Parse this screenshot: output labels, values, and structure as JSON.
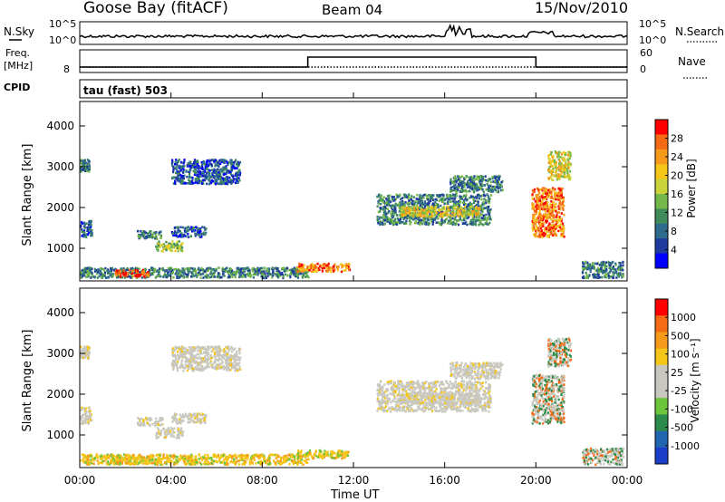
{
  "header": {
    "station": "Goose Bay (fitACF)",
    "beam": "Beam 04",
    "date": "15/Nov/2010"
  },
  "noise_panel": {
    "left_label": "N.Sky",
    "right_label": "N.Search",
    "left_ticks": [
      "10^5",
      "10^0"
    ],
    "right_ticks": [
      "10^5",
      "10^0"
    ]
  },
  "freq_panel": {
    "left_label_1": "Freq.",
    "left_label_2": "[MHz]",
    "right_label": "Nave",
    "left_ticks": [
      "8"
    ],
    "right_ticks": [
      "60",
      "0"
    ]
  },
  "cpid_panel": {
    "label": "CPID",
    "value": "tau (fast) 503"
  },
  "x_axis": {
    "label": "Time UT",
    "ticks": [
      "00:00",
      "04:00",
      "08:00",
      "12:00",
      "16:00",
      "20:00",
      "00:00"
    ]
  },
  "power_panel": {
    "ylabel": "Slant Range [km]",
    "yticks": [
      "4000",
      "3000",
      "2000",
      "1000"
    ],
    "colorbar_label": "Power [dB]",
    "colorbar_ticks": [
      "28",
      "24",
      "20",
      "16",
      "12",
      "8",
      "4"
    ],
    "colors": [
      "#0000ff",
      "#1f3a9e",
      "#2e6b8c",
      "#3f8c5a",
      "#74b84a",
      "#c8d43a",
      "#f5c518",
      "#f59a1a",
      "#f56a14",
      "#ff0000"
    ]
  },
  "velocity_panel": {
    "ylabel": "Slant Range [km]",
    "yticks": [
      "4000",
      "3000",
      "2000",
      "1000"
    ],
    "colorbar_label": "Velocity [m s⁻¹]",
    "colorbar_ticks": [
      "1000",
      "500",
      "100",
      "25",
      "-25",
      "-100",
      "-500",
      "-1000"
    ],
    "colors": [
      "#1a3ec8",
      "#2166b0",
      "#2c8a4a",
      "#6cc53a",
      "#c8c8c0",
      "#c8c8c0",
      "#f5c518",
      "#f59a1a",
      "#f56a14",
      "#ff0000"
    ]
  },
  "chart_data": {
    "type": "heatmap",
    "xlabel": "Time UT",
    "ylabel": "Slant Range [km]",
    "xlim_hours": [
      0,
      24
    ],
    "ylim_km": [
      200,
      4600
    ],
    "freq_mhz_step": {
      "low_hours": [
        0,
        10
      ],
      "high_hours": [
        10,
        20
      ],
      "low_after_hours": [
        20,
        24
      ]
    },
    "power_blobs": [
      {
        "t": [
          0.0,
          0.4
        ],
        "r": [
          2900,
          3200
        ],
        "level": 3
      },
      {
        "t": [
          0.0,
          0.5
        ],
        "r": [
          1300,
          1700
        ],
        "level": 2
      },
      {
        "t": [
          2.5,
          3.6
        ],
        "r": [
          1250,
          1450
        ],
        "level": 3
      },
      {
        "t": [
          3.3,
          4.5
        ],
        "r": [
          950,
          1200
        ],
        "level": 5
      },
      {
        "t": [
          4.0,
          5.5
        ],
        "r": [
          1300,
          1550
        ],
        "level": 2
      },
      {
        "t": [
          4.0,
          7.0
        ],
        "r": [
          2600,
          3200
        ],
        "level": 2
      },
      {
        "t": [
          0.0,
          10.0
        ],
        "r": [
          300,
          550
        ],
        "level": 3
      },
      {
        "t": [
          1.5,
          3.0
        ],
        "r": [
          320,
          500
        ],
        "level": 9
      },
      {
        "t": [
          9.5,
          11.8
        ],
        "r": [
          450,
          650
        ],
        "level": 8
      },
      {
        "t": [
          13.0,
          18.0
        ],
        "r": [
          1600,
          2350
        ],
        "level": 3
      },
      {
        "t": [
          14.0,
          17.5
        ],
        "r": [
          1800,
          2050
        ],
        "level": 6
      },
      {
        "t": [
          16.2,
          18.5
        ],
        "r": [
          2400,
          2800
        ],
        "level": 3
      },
      {
        "t": [
          19.8,
          21.2
        ],
        "r": [
          1300,
          2500
        ],
        "level": 8
      },
      {
        "t": [
          20.5,
          21.5
        ],
        "r": [
          2700,
          3400
        ],
        "level": 6
      },
      {
        "t": [
          22.0,
          23.8
        ],
        "r": [
          300,
          700
        ],
        "level": 3
      }
    ]
  }
}
